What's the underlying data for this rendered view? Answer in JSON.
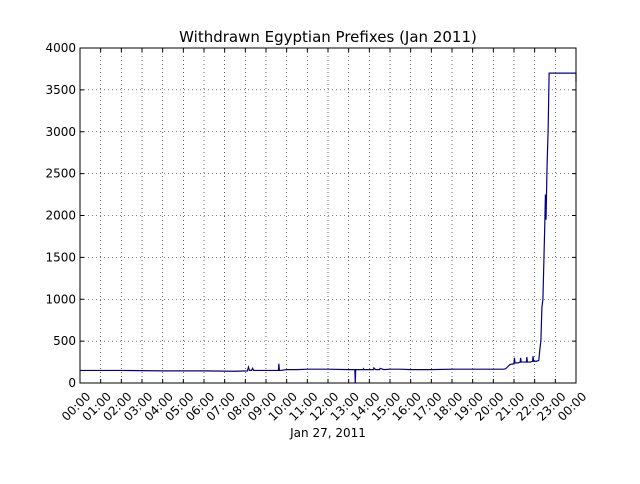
{
  "chart_data": {
    "type": "line",
    "title": "Withdrawn Egyptian Prefixes (Jan 2011)",
    "xlabel": "Jan 27, 2011",
    "ylabel": "",
    "x_unit": "hours",
    "xlim": [
      0,
      24
    ],
    "ylim": [
      0,
      4000
    ],
    "xticks": [
      0,
      1,
      2,
      3,
      4,
      5,
      6,
      7,
      8,
      9,
      10,
      11,
      12,
      13,
      14,
      15,
      16,
      17,
      18,
      19,
      20,
      21,
      22,
      23,
      24
    ],
    "xtick_labels": [
      "00:00",
      "01:00",
      "02:00",
      "03:00",
      "04:00",
      "05:00",
      "06:00",
      "07:00",
      "08:00",
      "09:00",
      "10:00",
      "11:00",
      "12:00",
      "13:00",
      "14:00",
      "15:00",
      "16:00",
      "17:00",
      "18:00",
      "19:00",
      "20:00",
      "21:00",
      "22:00",
      "23:00",
      "00:00"
    ],
    "yticks": [
      0,
      500,
      1000,
      1500,
      2000,
      2500,
      3000,
      3500,
      4000
    ],
    "ytick_labels": [
      "0",
      "500",
      "1000",
      "1500",
      "2000",
      "2500",
      "3000",
      "3500",
      "4000"
    ],
    "grid": true,
    "line_color": "#00008b",
    "series": [
      {
        "x": [
          0,
          2,
          4,
          6,
          7.5,
          8.1,
          8.15,
          8.2,
          8.3,
          8.35,
          8.4,
          8.6,
          8.8,
          9,
          9.5,
          9.6,
          9.62,
          9.65,
          9.7,
          10,
          10.5,
          11,
          12,
          13,
          13.3,
          13.32,
          13.34,
          13.4,
          13.6,
          13.7,
          13.72,
          13.74,
          14,
          14.2,
          14.22,
          14.3,
          14.5,
          14.52,
          14.7,
          15,
          15.5,
          16,
          17,
          18,
          19,
          20,
          20.5,
          20.6,
          20.8,
          21,
          21.02,
          21.05,
          21.2,
          21.3,
          21.32,
          21.35,
          21.5,
          21.6,
          21.62,
          21.65,
          21.8,
          21.9,
          21.92,
          21.95,
          22.1,
          22.2,
          22.25,
          22.3,
          22.35,
          22.4,
          22.45,
          22.5,
          22.52,
          22.55,
          22.6,
          22.65,
          22.7,
          22.75,
          22.8,
          24,
          24
        ],
        "y": [
          150,
          150,
          145,
          145,
          140,
          145,
          190,
          150,
          150,
          175,
          150,
          150,
          150,
          150,
          150,
          150,
          230,
          150,
          150,
          160,
          160,
          165,
          165,
          160,
          160,
          0,
          160,
          160,
          160,
          160,
          170,
          160,
          160,
          160,
          180,
          160,
          160,
          175,
          160,
          165,
          165,
          160,
          160,
          165,
          165,
          165,
          165,
          170,
          220,
          230,
          300,
          240,
          240,
          250,
          300,
          250,
          250,
          250,
          310,
          250,
          250,
          260,
          320,
          260,
          260,
          270,
          400,
          500,
          900,
          1000,
          1500,
          2000,
          2250,
          1950,
          2600,
          3000,
          3700,
          3700,
          3700,
          3700,
          3600
        ]
      }
    ]
  }
}
